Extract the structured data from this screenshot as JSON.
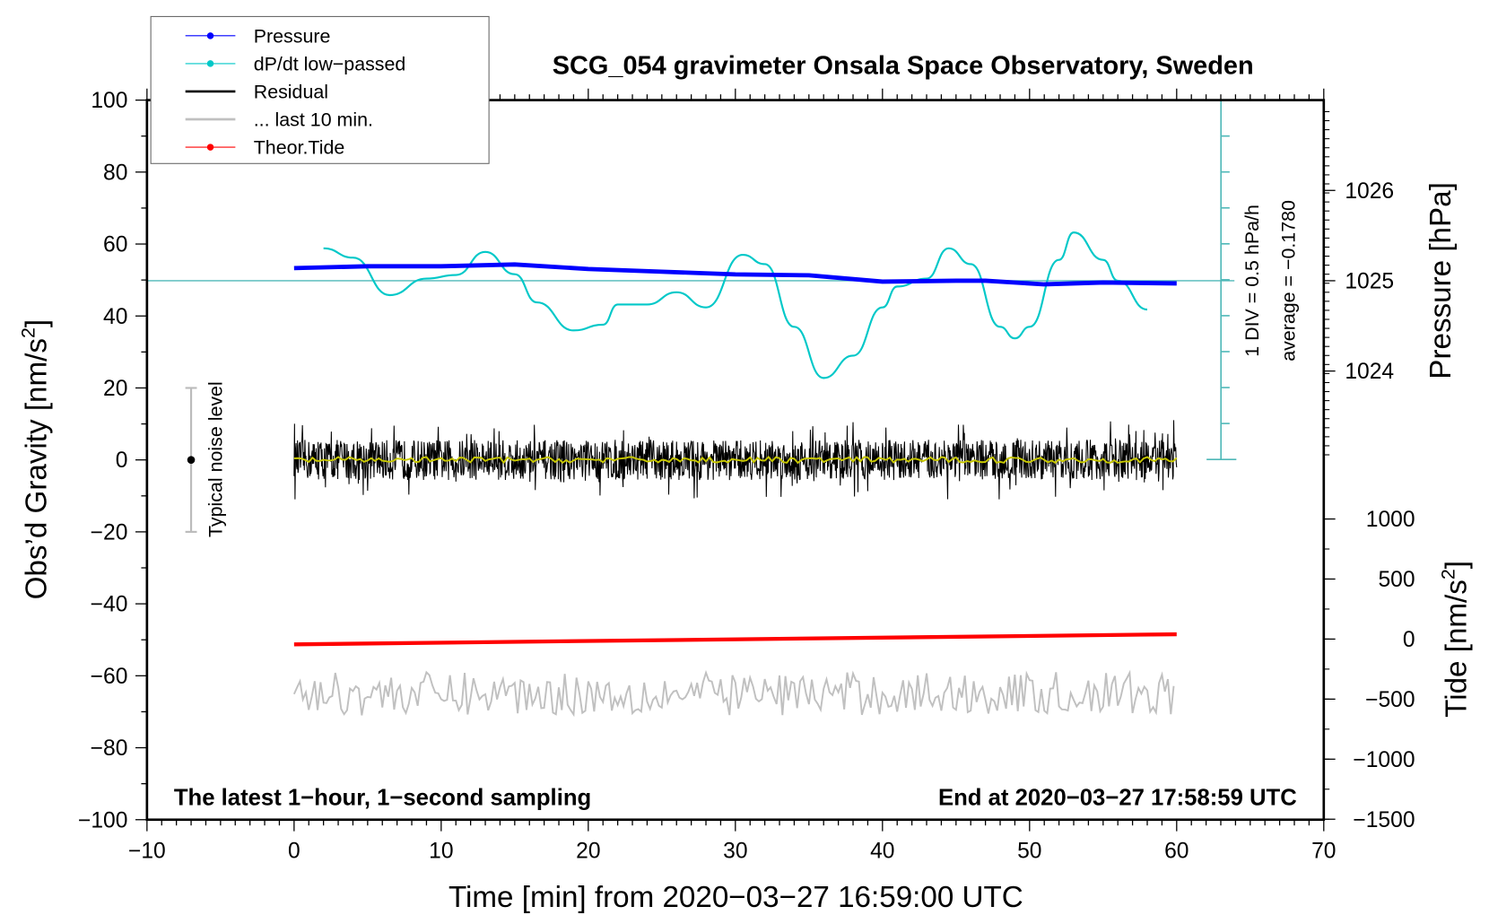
{
  "chart_data": {
    "type": "line",
    "title": "SCG_054 gravimeter Onsala Space Observatory, Sweden",
    "xlabel": "Time [min] from 2020−03−27 16:59:00 UTC",
    "ylabel": "Obs’d Gravity [nm/s",
    "ylabel_sup": "2",
    "ylabel_end": "]",
    "y2label": "Pressure [hPa]",
    "y3label": "Tide [nm/s",
    "y3label_sup": "2",
    "y3label_end": "]",
    "xlim": [
      -10,
      70
    ],
    "ylim": [
      -100,
      100
    ],
    "pressure_ticks": [
      "1026",
      "1025",
      "1024"
    ],
    "pressure_tick_values": [
      1026,
      1025,
      1024
    ],
    "tide_ticks": [
      "1000",
      "500",
      "0",
      "−500",
      "−1000",
      "−1500"
    ],
    "tide_tick_values": [
      1000,
      500,
      0,
      -500,
      -1000,
      -1500
    ],
    "x_ticks": [
      "−10",
      "0",
      "10",
      "20",
      "30",
      "40",
      "50",
      "60",
      "70"
    ],
    "x_tick_values": [
      -10,
      0,
      10,
      20,
      30,
      40,
      50,
      60,
      70
    ],
    "y_ticks": [
      "100",
      "80",
      "60",
      "40",
      "20",
      "0",
      "−20",
      "−40",
      "−60",
      "−80",
      "−100"
    ],
    "y_tick_values": [
      100,
      80,
      60,
      40,
      20,
      0,
      -20,
      -40,
      -60,
      -80,
      -100
    ],
    "annotations": {
      "bottom_left": "The latest 1−hour, 1−second sampling",
      "bottom_right": "End at 2020−03−27 17:58:59 UTC",
      "div_label": "1 DIV = 0.5 hPa/h",
      "average_label": "average = −0.1780",
      "noise_label": "Typical noise level"
    },
    "legend": {
      "placement": "top-left",
      "entries": [
        {
          "label": "Pressure",
          "color": "#0000ff",
          "marker": true
        },
        {
          "label": "dP/dt low−passed",
          "color": "#00c8c8",
          "marker": true
        },
        {
          "label": "Residual",
          "color": "#000000",
          "marker": false
        },
        {
          "label": "... last 10 min.",
          "color": "#c0c0c0",
          "marker": false
        },
        {
          "label": "Theor.Tide",
          "color": "#ff0000",
          "marker": true
        }
      ]
    },
    "colors": {
      "pressure": "#0000ff",
      "dpdt": "#00c8c8",
      "dpdt_axis": "#4fb8b8",
      "residual": "#000000",
      "smooth": "#c8c800",
      "last10": "#c0c0c0",
      "tide": "#ff0000"
    },
    "series": [
      {
        "name": "Pressure",
        "unit": "hPa",
        "x": [
          0,
          5,
          10,
          15,
          20,
          25,
          30,
          35,
          40,
          45,
          47,
          51,
          55,
          60
        ],
        "values": [
          1025.14,
          1025.16,
          1025.16,
          1025.18,
          1025.13,
          1025.1,
          1025.07,
          1025.06,
          1024.99,
          1025.0,
          1025.0,
          1024.96,
          1024.98,
          1024.97
        ]
      },
      {
        "name": "dP/dt low-passed (deviation from average)",
        "unit": "hPa/h",
        "x": [
          2,
          4,
          6.5,
          9,
          11,
          13,
          15,
          16.5,
          19,
          21,
          22,
          24,
          26,
          28,
          30.5,
          32,
          34,
          36,
          38,
          40,
          41,
          43,
          44.5,
          46,
          48,
          49,
          50,
          52,
          53,
          55,
          56,
          58
        ],
        "values": [
          0.45,
          0.32,
          -0.2,
          0.03,
          0.08,
          0.4,
          0.09,
          -0.3,
          -0.69,
          -0.61,
          -0.33,
          -0.33,
          -0.16,
          -0.37,
          0.36,
          0.23,
          -0.64,
          -1.35,
          -1.04,
          -0.37,
          -0.08,
          0.03,
          0.45,
          0.23,
          -0.64,
          -0.8,
          -0.64,
          0.29,
          0.67,
          0.29,
          0.0,
          -0.4
        ]
      },
      {
        "name": "Residual",
        "unit": "nm/s2",
        "x_range": [
          0,
          60
        ],
        "center": 0,
        "noise_amplitude": 8
      },
      {
        "name": "... last 10 min.",
        "unit": "nm/s2",
        "x_range": [
          0,
          60
        ],
        "center": -65,
        "noise_amplitude": 6
      },
      {
        "name": "Theor.Tide",
        "unit": "nm/s2",
        "x": [
          0,
          60
        ],
        "values": [
          -44,
          40
        ]
      }
    ],
    "noise_bar": {
      "x": -7,
      "range": [
        -20,
        20
      ],
      "center": 0
    }
  }
}
